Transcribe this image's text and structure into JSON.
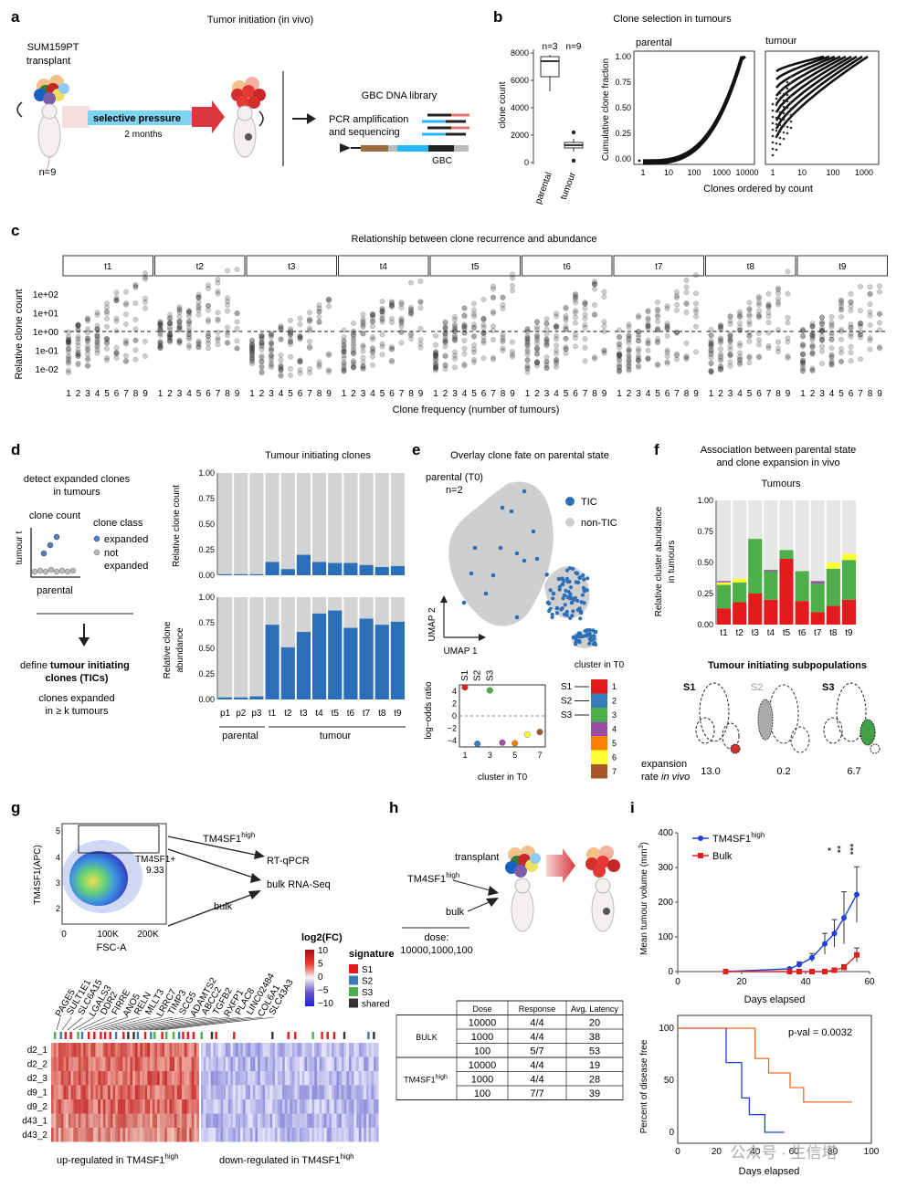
{
  "panels": {
    "a": {
      "letter": "a",
      "title": "Tumor initiation (in vivo)",
      "cell_line": "SUM159PT",
      "transplant": "transplant",
      "pressure": "selective pressure",
      "duration": "2 months",
      "n": "n=9",
      "library": "GBC DNA library",
      "pcr1": "PCR amplification",
      "pcr2": "and sequencing",
      "gbc": "GBC"
    },
    "b": {
      "letter": "b",
      "title": "Clone selection in tumours",
      "box_ylabel": "clone count",
      "box_n": [
        "n=3",
        "n=9"
      ],
      "box_groups": [
        "parental",
        "tumour"
      ],
      "box_yticks": [
        "8000",
        "6000",
        "4000",
        "2000",
        "0"
      ],
      "cum_ylabel": "Cumulative clone fraction",
      "cum_xlabel": "Clones ordered by count",
      "panel_titles": [
        "parental",
        "tumour"
      ],
      "cum_yticks": [
        "1.00",
        "0.75",
        "0.50",
        "0.25",
        "0.00"
      ],
      "cum_xticks_left": [
        "1",
        "10",
        "100",
        "1000",
        "10000"
      ],
      "cum_xticks_right": [
        "1",
        "10",
        "100",
        "1000"
      ]
    },
    "c": {
      "letter": "c",
      "title": "Relationship between clone recurrence and abundance",
      "ylabel": "Relative clone count",
      "xlabel": "Clone frequency (number of tumours)",
      "facets": [
        "t1",
        "t2",
        "t3",
        "t4",
        "t5",
        "t6",
        "t7",
        "t8",
        "t9"
      ],
      "yticks": [
        "1e+02",
        "1e+01",
        "1e+00",
        "1e-01",
        "1e-02"
      ],
      "xticks": [
        "1",
        "2",
        "3",
        "4",
        "5",
        "6",
        "7",
        "8",
        "9"
      ]
    },
    "d": {
      "letter": "d",
      "step1a": "detect expanded clones",
      "step1b": "in tumours",
      "clone_count": "clone count",
      "clone_class": "clone class",
      "expanded": "expanded",
      "not_expanded1": "not",
      "not_expanded2": "expanded",
      "yaxis": "tumour t",
      "xaxis": "parental",
      "define1": "define",
      "define2": "tumour initiating",
      "define3": "clones (TICs)",
      "expand1": "clones expanded",
      "expand2": "in ≥ k tumours",
      "bar_title": "Tumour initiating clones",
      "ylabel_top": "Relative clone count",
      "ylabel_bot1": "Relative clone",
      "ylabel_bot2": "abundance",
      "yticks": [
        "1.00",
        "0.75",
        "0.50",
        "0.25",
        "0.00"
      ],
      "samples": [
        "p1",
        "p2",
        "p3",
        "t1",
        "t2",
        "t3",
        "t4",
        "t5",
        "t6",
        "t7",
        "t8",
        "t9"
      ],
      "group_parental": "parental",
      "group_tumour": "tumour"
    },
    "e": {
      "letter": "e",
      "title": "Overlay clone fate on parental state",
      "sample": "parental (T0)",
      "n": "n=2",
      "legend_tic": "TIC",
      "legend_nontic": "non-TIC",
      "umap1": "UMAP 1",
      "umap2": "UMAP 2",
      "lor_ylabel": "log−odds ratio",
      "lor_xlabel": "cluster in T0",
      "lor_yticks": [
        "4",
        "2",
        "0",
        "−2",
        "−4"
      ],
      "lor_xticks": [
        "1",
        "3",
        "5",
        "7"
      ],
      "subpops": [
        "S1",
        "S2",
        "S3"
      ],
      "cluster_legend_title": "cluster in T0",
      "clusters": [
        "1",
        "2",
        "3",
        "4",
        "5",
        "6",
        "7"
      ]
    },
    "f": {
      "letter": "f",
      "title1": "Association between parental state",
      "title2": "and clone expansion in vivo",
      "subtitle": "Tumours",
      "ylabel1": "Relative cluster abundance",
      "ylabel2": "in tumours",
      "yticks": [
        "1.00",
        "0.75",
        "0.50",
        "0.25",
        "0.00"
      ],
      "samples": [
        "t1",
        "t2",
        "t3",
        "t4",
        "t5",
        "t6",
        "t7",
        "t8",
        "t9"
      ],
      "subpop_title": "Tumour initiating subpopulations",
      "subpops": [
        "S1",
        "S2",
        "S3"
      ],
      "exp1": "expansion",
      "exp2": "rate in vivo",
      "rates": [
        "13.0",
        "0.2",
        "6.7"
      ]
    },
    "g": {
      "letter": "g",
      "yaxis": "TM4SF1(APC)",
      "xaxis": "FSC-A",
      "xticks": [
        "0",
        "100K",
        "200K"
      ],
      "gate_label": "TM4SF1+",
      "gate_pct": "9.33",
      "high_label": "TM4SF1",
      "high_sup": "high",
      "rtqpcr": "RT-qPCR",
      "rnaseq": "bulk RNA-Seq",
      "bulk": "bulk",
      "fc_title": "log2(FC)",
      "fc_ticks": [
        "10",
        "5",
        "0",
        "−5",
        "−10"
      ],
      "sig_title": "signature",
      "sig_items": [
        "S1",
        "S2",
        "S3",
        "shared"
      ],
      "genes": [
        "PAGE5",
        "SULT1E1",
        "SLC6A15",
        "LGALS3",
        "DDR2",
        "FIRRE",
        "ANO5",
        "RELN",
        "MLLT3",
        "LRRC7",
        "TIMP3",
        "SCG5",
        "ADAMTS2",
        "ABCC2",
        "TGFB2",
        "RXFP1",
        "PLAC8",
        "LINC02484",
        "COL6A1",
        "SLC43A3"
      ],
      "rows": [
        "d2_1",
        "d2_2",
        "d2_3",
        "d9_1",
        "d9_2",
        "d43_1",
        "d43_2"
      ],
      "up_label": "up-regulated in TM4SF1",
      "down_label": "down-regulated in TM4SF1",
      "sup": "high"
    },
    "h": {
      "letter": "h",
      "transplant": "transplant",
      "tm": "TM4SF1",
      "tm_sup": "high",
      "bulk": "bulk",
      "dose_label": "dose:",
      "dose_values": "10000,1000,100",
      "table_headers": [
        "Dose",
        "Response",
        "Avg. Latency"
      ],
      "groups": [
        "BULK",
        "TM4SF1"
      ],
      "group_sup": "high",
      "rows": [
        [
          "10000",
          "4/4",
          "20"
        ],
        [
          "1000",
          "4/4",
          "38"
        ],
        [
          "100",
          "5/7",
          "53"
        ],
        [
          "10000",
          "4/4",
          "19"
        ],
        [
          "1000",
          "4/4",
          "28"
        ],
        [
          "100",
          "7/7",
          "39"
        ]
      ]
    },
    "i": {
      "letter": "i",
      "ylabel_top": "Mean tumour volume (mm",
      "ylabel_sup": "3",
      "xlabel": "Days elapsed",
      "yticks_top": [
        "400",
        "300",
        "200",
        "100",
        "0"
      ],
      "xticks": [
        "0",
        "20",
        "40",
        "60"
      ],
      "legend_tm": "TM4SF1",
      "legend_tm_sup": "high",
      "legend_bulk": "Bulk",
      "stars": [
        "*",
        "**",
        "***"
      ],
      "ylabel_bot": "Percent of disease free",
      "yticks_bot": [
        "100",
        "50",
        "0"
      ],
      "xticks_bot": [
        "0",
        "20",
        "40",
        "60",
        "80",
        "100"
      ],
      "pval": "p-val = 0.0032",
      "watermark": "公众号 · 生信塔"
    }
  },
  "chart_data": [
    {
      "type": "bar",
      "title": "Tumour initiating clones — Relative clone count",
      "categories": [
        "p1",
        "p2",
        "p3",
        "t1",
        "t2",
        "t3",
        "t4",
        "t5",
        "t6",
        "t7",
        "t8",
        "t9"
      ],
      "series": [
        {
          "name": "TIC",
          "values": [
            0.01,
            0.01,
            0.01,
            0.13,
            0.06,
            0.2,
            0.13,
            0.12,
            0.12,
            0.1,
            0.08,
            0.09
          ]
        }
      ],
      "ylim": [
        0,
        1
      ]
    },
    {
      "type": "bar",
      "title": "Tumour initiating clones — Relative clone abundance",
      "categories": [
        "p1",
        "p2",
        "p3",
        "t1",
        "t2",
        "t3",
        "t4",
        "t5",
        "t6",
        "t7",
        "t8",
        "t9"
      ],
      "series": [
        {
          "name": "TIC",
          "values": [
            0.02,
            0.02,
            0.03,
            0.73,
            0.51,
            0.66,
            0.84,
            0.87,
            0.7,
            0.79,
            0.73,
            0.76
          ]
        }
      ],
      "ylim": [
        0,
        1
      ]
    },
    {
      "type": "bar",
      "title": "Association between parental state and clone expansion in vivo",
      "categories": [
        "t1",
        "t2",
        "t3",
        "t4",
        "t5",
        "t6",
        "t7",
        "t8",
        "t9"
      ],
      "series": [
        {
          "name": "cluster 1",
          "color": "#e41a1c",
          "values": [
            0.13,
            0.18,
            0.25,
            0.2,
            0.53,
            0.19,
            0.1,
            0.15,
            0.2
          ]
        },
        {
          "name": "cluster 3",
          "color": "#4daf4a",
          "values": [
            0.19,
            0.16,
            0.44,
            0.23,
            0.07,
            0.24,
            0.23,
            0.3,
            0.32
          ]
        },
        {
          "name": "cluster 6",
          "color": "#ffff33",
          "values": [
            0.02,
            0.03,
            0.0,
            0.0,
            0.0,
            0.0,
            0.0,
            0.05,
            0.05
          ]
        },
        {
          "name": "cluster 4",
          "color": "#984ea3",
          "values": [
            0.01,
            0.0,
            0.0,
            0.01,
            0.0,
            0.0,
            0.02,
            0.0,
            0.0
          ]
        }
      ],
      "ylim": [
        0,
        1
      ]
    },
    {
      "type": "scatter",
      "title": "log-odds ratio by cluster in T0",
      "x": [
        1,
        2,
        3,
        4,
        5,
        6,
        7
      ],
      "y": [
        4.6,
        -4.5,
        4.1,
        -4.3,
        -4.4,
        -3.0,
        -2.6
      ],
      "ylim": [
        -5,
        5
      ]
    },
    {
      "type": "line",
      "title": "Mean tumour volume",
      "xlabel": "Days elapsed",
      "ylabel": "Mean tumour volume (mm3)",
      "series": [
        {
          "name": "TM4SF1high",
          "x": [
            15,
            35,
            38,
            42,
            46,
            49,
            52,
            56
          ],
          "y": [
            0,
            8,
            20,
            40,
            80,
            110,
            155,
            222
          ]
        },
        {
          "name": "Bulk",
          "x": [
            15,
            35,
            38,
            42,
            46,
            49,
            52,
            56
          ],
          "y": [
            0,
            0,
            0,
            0,
            0,
            4,
            12,
            48
          ]
        }
      ],
      "ylim": [
        0,
        400
      ],
      "xlim": [
        0,
        60
      ]
    },
    {
      "type": "line",
      "title": "Percent of disease free",
      "xlabel": "Days elapsed",
      "series": [
        {
          "name": "TM4SF1high",
          "x": [
            0,
            19,
            25,
            33,
            37,
            45,
            55
          ],
          "y": [
            100,
            100,
            67,
            33,
            17,
            0,
            0
          ]
        },
        {
          "name": "Bulk",
          "x": [
            0,
            28,
            40,
            47,
            58,
            65,
            90
          ],
          "y": [
            100,
            100,
            71,
            57,
            43,
            29,
            29
          ]
        }
      ],
      "ylim": [
        0,
        100
      ],
      "xlim": [
        0,
        100
      ]
    }
  ]
}
